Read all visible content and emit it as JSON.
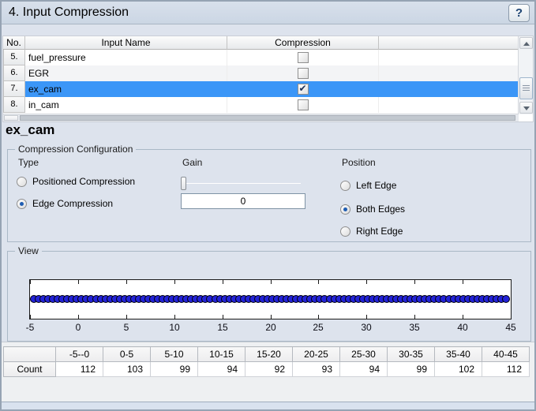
{
  "header": {
    "title": "4. Input Compression",
    "help": "?"
  },
  "input_table": {
    "columns": [
      "No.",
      "Input Name",
      "Compression",
      ""
    ],
    "rows": [
      {
        "no": "5.",
        "name": "fuel_pressure",
        "compression_checked": false,
        "selected": false
      },
      {
        "no": "6.",
        "name": "EGR",
        "compression_checked": false,
        "selected": false
      },
      {
        "no": "7.",
        "name": "ex_cam",
        "compression_checked": true,
        "selected": true
      },
      {
        "no": "8.",
        "name": "in_cam",
        "compression_checked": false,
        "selected": false
      }
    ]
  },
  "detail": {
    "heading": "ex_cam",
    "config": {
      "legend": "Compression Configuration",
      "type_label": "Type",
      "gain_label": "Gain",
      "position_label": "Position",
      "type_options": [
        {
          "label": "Positioned Compression",
          "selected": false
        },
        {
          "label": "Edge Compression",
          "selected": true
        }
      ],
      "gain_value": "0",
      "position_options": [
        {
          "label": "Left Edge",
          "selected": false
        },
        {
          "label": "Both Edges",
          "selected": true
        },
        {
          "label": "Right Edge",
          "selected": false
        }
      ]
    },
    "view": {
      "legend": "View"
    }
  },
  "counts_table": {
    "row_label": "Count",
    "bins": [
      "-5--0",
      "0-5",
      "5-10",
      "10-15",
      "15-20",
      "20-25",
      "25-30",
      "30-35",
      "35-40",
      "40-45"
    ],
    "counts": [
      112,
      103,
      99,
      94,
      92,
      93,
      94,
      99,
      102,
      112
    ]
  },
  "chart_data": {
    "type": "scatter",
    "title": "",
    "xlabel": "",
    "ylabel": "",
    "xlim": [
      -5,
      45
    ],
    "x_ticks": [
      -5,
      0,
      5,
      10,
      15,
      20,
      25,
      30,
      35,
      40,
      45
    ],
    "marker_color": "#2222d6",
    "n_points_rendered": 100,
    "description": "1000 data points of ex_cam spread densely along one horizontal line spanning -5 to 45",
    "histogram_bins": [
      "-5--0",
      "0-5",
      "5-10",
      "10-15",
      "15-20",
      "20-25",
      "25-30",
      "30-35",
      "35-40",
      "40-45"
    ],
    "histogram_counts": [
      112,
      103,
      99,
      94,
      92,
      93,
      94,
      99,
      102,
      112
    ]
  },
  "colors": {
    "selection": "#3b96f7",
    "marker": "#2222d6",
    "panel_bg": "#dde3ed"
  }
}
